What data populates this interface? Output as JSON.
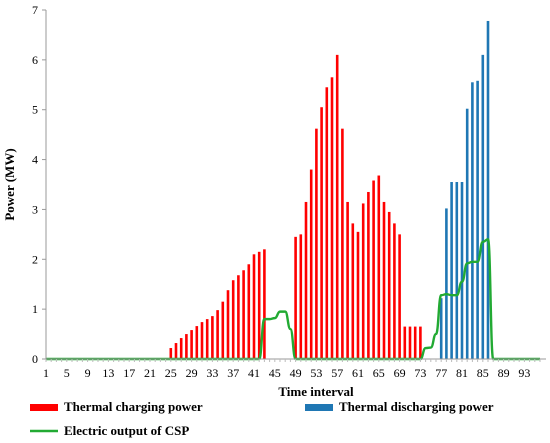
{
  "chart_data": {
    "type": "bar",
    "title": "",
    "xlabel": "Time interval",
    "ylabel": "Power (MW)",
    "xlim": [
      1,
      96
    ],
    "ylim": [
      0,
      7
    ],
    "y_ticks": [
      0,
      1,
      2,
      3,
      4,
      5,
      6,
      7
    ],
    "x_ticks": [
      1,
      5,
      9,
      13,
      17,
      21,
      25,
      29,
      33,
      37,
      41,
      45,
      49,
      53,
      57,
      61,
      65,
      69,
      73,
      77,
      81,
      85,
      89,
      93
    ],
    "grid": false,
    "legend_position": "bottom",
    "series": [
      {
        "name": "Thermal charging power",
        "kind": "bar",
        "color": "#ff0000",
        "points": [
          [
            25,
            0.22
          ],
          [
            26,
            0.32
          ],
          [
            27,
            0.42
          ],
          [
            28,
            0.5
          ],
          [
            29,
            0.58
          ],
          [
            30,
            0.66
          ],
          [
            31,
            0.74
          ],
          [
            32,
            0.8
          ],
          [
            33,
            0.86
          ],
          [
            34,
            0.98
          ],
          [
            35,
            1.15
          ],
          [
            36,
            1.38
          ],
          [
            37,
            1.58
          ],
          [
            38,
            1.68
          ],
          [
            39,
            1.78
          ],
          [
            40,
            1.9
          ],
          [
            41,
            2.1
          ],
          [
            42,
            2.15
          ],
          [
            43,
            2.2
          ],
          [
            49,
            2.45
          ],
          [
            50,
            2.5
          ],
          [
            51,
            3.15
          ],
          [
            52,
            3.8
          ],
          [
            53,
            4.62
          ],
          [
            54,
            5.05
          ],
          [
            55,
            5.45
          ],
          [
            56,
            5.65
          ],
          [
            57,
            6.1
          ],
          [
            58,
            4.62
          ],
          [
            59,
            3.15
          ],
          [
            60,
            2.72
          ],
          [
            61,
            2.55
          ],
          [
            62,
            3.12
          ],
          [
            63,
            3.35
          ],
          [
            64,
            3.58
          ],
          [
            65,
            3.68
          ],
          [
            66,
            3.15
          ],
          [
            67,
            2.95
          ],
          [
            68,
            2.72
          ],
          [
            69,
            2.5
          ],
          [
            70,
            0.65
          ],
          [
            71,
            0.65
          ],
          [
            72,
            0.65
          ],
          [
            73,
            0.65
          ]
        ]
      },
      {
        "name": "Thermal discharging power",
        "kind": "bar",
        "color": "#1f77b4",
        "points": [
          [
            77,
            1.22
          ],
          [
            78,
            3.02
          ],
          [
            79,
            3.55
          ],
          [
            80,
            3.55
          ],
          [
            81,
            3.55
          ],
          [
            82,
            5.02
          ],
          [
            83,
            5.55
          ],
          [
            84,
            5.58
          ],
          [
            85,
            6.1
          ],
          [
            86,
            6.78
          ]
        ]
      },
      {
        "name": "Electric output of CSP",
        "kind": "line",
        "color": "#22aa33",
        "points": [
          [
            1,
            0
          ],
          [
            42,
            0
          ],
          [
            43,
            0.8
          ],
          [
            44,
            0.8
          ],
          [
            45,
            0.82
          ],
          [
            46,
            0.95
          ],
          [
            47,
            0.95
          ],
          [
            48,
            0.6
          ],
          [
            49,
            0
          ],
          [
            73,
            0
          ],
          [
            74,
            0.22
          ],
          [
            75,
            0.23
          ],
          [
            76,
            0.5
          ],
          [
            77,
            1.28
          ],
          [
            78,
            1.3
          ],
          [
            79,
            1.28
          ],
          [
            80,
            1.28
          ],
          [
            81,
            1.55
          ],
          [
            82,
            1.92
          ],
          [
            83,
            1.95
          ],
          [
            84,
            1.95
          ],
          [
            85,
            2.35
          ],
          [
            86,
            2.4
          ],
          [
            87,
            0
          ],
          [
            96,
            0
          ]
        ]
      }
    ]
  }
}
